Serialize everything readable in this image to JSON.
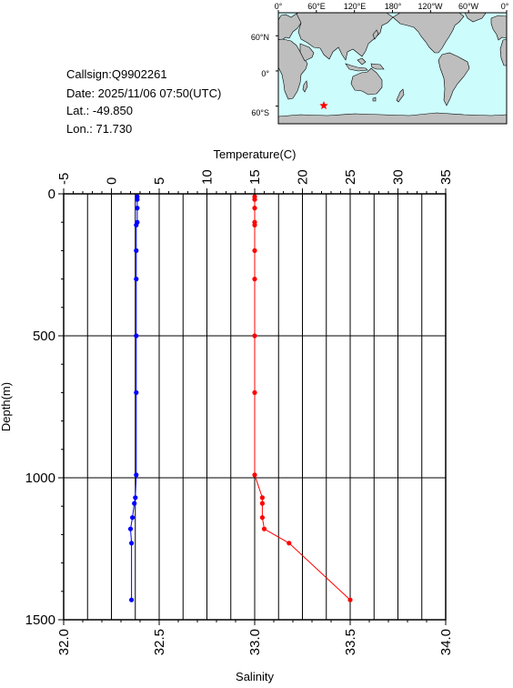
{
  "info": {
    "callsign": "Callsign:Q9902261",
    "date": "Date:  2025/11/06 07:50(UTC)",
    "lat": "Lat.:  -49.850",
    "lon": "Lon.:   71.730"
  },
  "map": {
    "lon_labels": [
      "0°",
      "60°E",
      "120°E",
      "180°",
      "120°W",
      "60°W",
      "0°"
    ],
    "lat_labels": [
      "60°N",
      "0°",
      "60°S"
    ],
    "marker": {
      "lon": 71.73,
      "lat": -49.85,
      "color": "#ff0000",
      "icon": "star-icon"
    },
    "colors": {
      "ocean": "#cdfcfc",
      "land": "#bebebe"
    }
  },
  "chart_data": {
    "type": "line",
    "ylabel": "Depth(m)",
    "ylim": [
      1500,
      0
    ],
    "yticks": [
      "0",
      "500",
      "1000",
      "1500"
    ],
    "top_axis": {
      "label": "Temperature(C)",
      "range": [
        -5,
        35
      ],
      "ticks": [
        "-5",
        "0",
        "5",
        "10",
        "15",
        "20",
        "25",
        "30",
        "35"
      ]
    },
    "bottom_axis": {
      "label": "Salinity",
      "range": [
        32.0,
        34.0
      ],
      "ticks": [
        "32.0",
        "32.5",
        "33.0",
        "33.5",
        "34.0"
      ]
    },
    "grid": true,
    "series": [
      {
        "color": "#0000ff",
        "axis": "top",
        "points": [
          [
            2.7,
            10
          ],
          [
            2.7,
            20
          ],
          [
            2.7,
            50
          ],
          [
            2.7,
            100
          ],
          [
            2.6,
            110
          ],
          [
            2.6,
            200
          ],
          [
            2.6,
            300
          ],
          [
            2.6,
            500
          ],
          [
            2.6,
            700
          ],
          [
            2.6,
            990
          ],
          [
            2.5,
            1070
          ],
          [
            2.4,
            1090
          ],
          [
            2.2,
            1140
          ],
          [
            2.0,
            1180
          ],
          [
            2.1,
            1230
          ],
          [
            2.1,
            1430
          ]
        ]
      },
      {
        "color": "#ff0000",
        "axis": "bottom",
        "points": [
          [
            33.0,
            10
          ],
          [
            33.0,
            20
          ],
          [
            33.0,
            50
          ],
          [
            33.0,
            100
          ],
          [
            33.0,
            110
          ],
          [
            33.0,
            200
          ],
          [
            33.0,
            300
          ],
          [
            33.0,
            500
          ],
          [
            33.0,
            700
          ],
          [
            33.0,
            990
          ],
          [
            33.04,
            1070
          ],
          [
            33.04,
            1090
          ],
          [
            33.04,
            1140
          ],
          [
            33.05,
            1180
          ],
          [
            33.18,
            1230
          ],
          [
            33.5,
            1430
          ]
        ]
      }
    ]
  }
}
